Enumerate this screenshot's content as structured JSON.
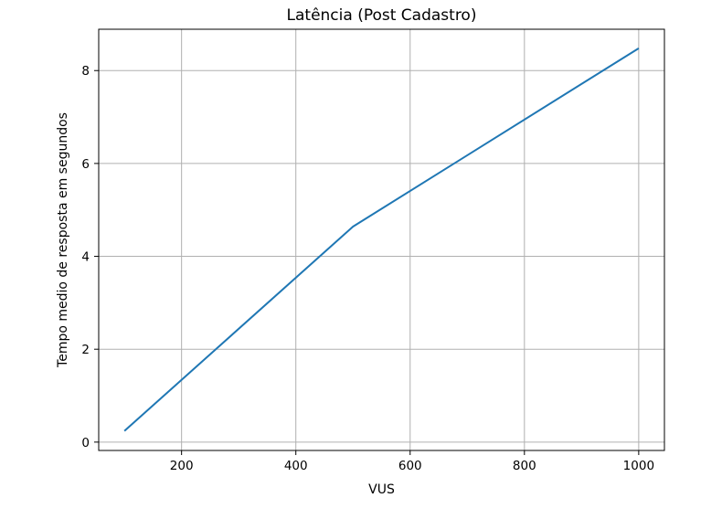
{
  "chart_data": {
    "type": "line",
    "title": "Latência (Post Cadastro)",
    "xlabel": "VUS",
    "ylabel": "Tempo medio de resposta em segundos",
    "x": [
      100,
      500,
      1000
    ],
    "series": [
      {
        "values": [
          0.24,
          4.64,
          8.48
        ],
        "color": "#1f77b4"
      }
    ],
    "xlim": [
      55,
      1045
    ],
    "ylim": [
      -0.18,
      8.89
    ],
    "xticks": [
      200,
      400,
      600,
      800,
      1000
    ],
    "yticks": [
      0,
      2,
      4,
      6,
      8
    ],
    "grid": true,
    "grid_color": "#b0b0b0",
    "axis_color": "#000000"
  }
}
